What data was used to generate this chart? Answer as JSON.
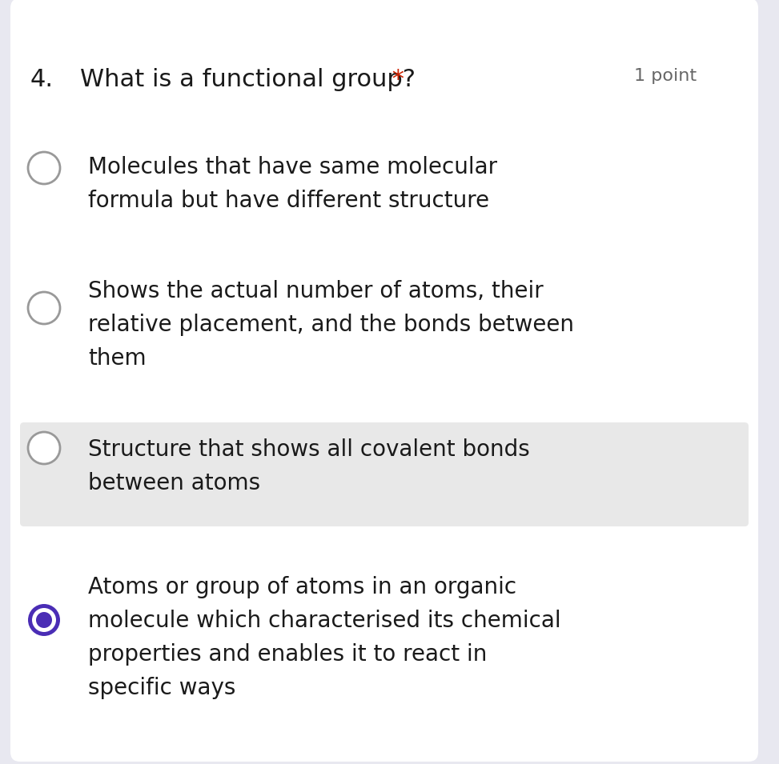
{
  "background_color": "#e8e8f0",
  "card_color": "#ffffff",
  "question_number": "4.",
  "question_text": "What is a functional group?",
  "asterisk": " *",
  "points_text": "1 point",
  "question_fontsize": 22,
  "points_fontsize": 16,
  "text_color": "#1a1a1a",
  "asterisk_color": "#cc2200",
  "points_color": "#666666",
  "options": [
    {
      "text": "Molecules that have same molecular formula but have different structure",
      "selected": false,
      "lines": [
        "Molecules that have same molecular",
        "formula but have different structure"
      ]
    },
    {
      "text": "Shows the actual number of atoms, their relative placement, and the bonds between them",
      "selected": false,
      "lines": [
        "Shows the actual number of atoms, their",
        "relative placement, and the bonds between",
        "them"
      ]
    },
    {
      "text": "Structure that shows all covalent bonds between atoms",
      "selected": false,
      "lines": [
        "Structure that shows all covalent bonds",
        "between atoms"
      ]
    },
    {
      "text": "Atoms or group of atoms in an organic molecule which characterised its chemical properties and enables it to react in specific ways",
      "selected": true,
      "lines": [
        "Atoms or group of atoms in an organic",
        "molecule which characterised its chemical",
        "properties and enables it to react in",
        "specific ways"
      ]
    }
  ],
  "option_fontsize": 20,
  "radio_color_unselected": "#ffffff",
  "radio_border_color": "#999999",
  "radio_selected_fill": "#4a2db5",
  "radio_selected_border": "#4a2db5",
  "option_highlight_color": "#e8e8e8"
}
